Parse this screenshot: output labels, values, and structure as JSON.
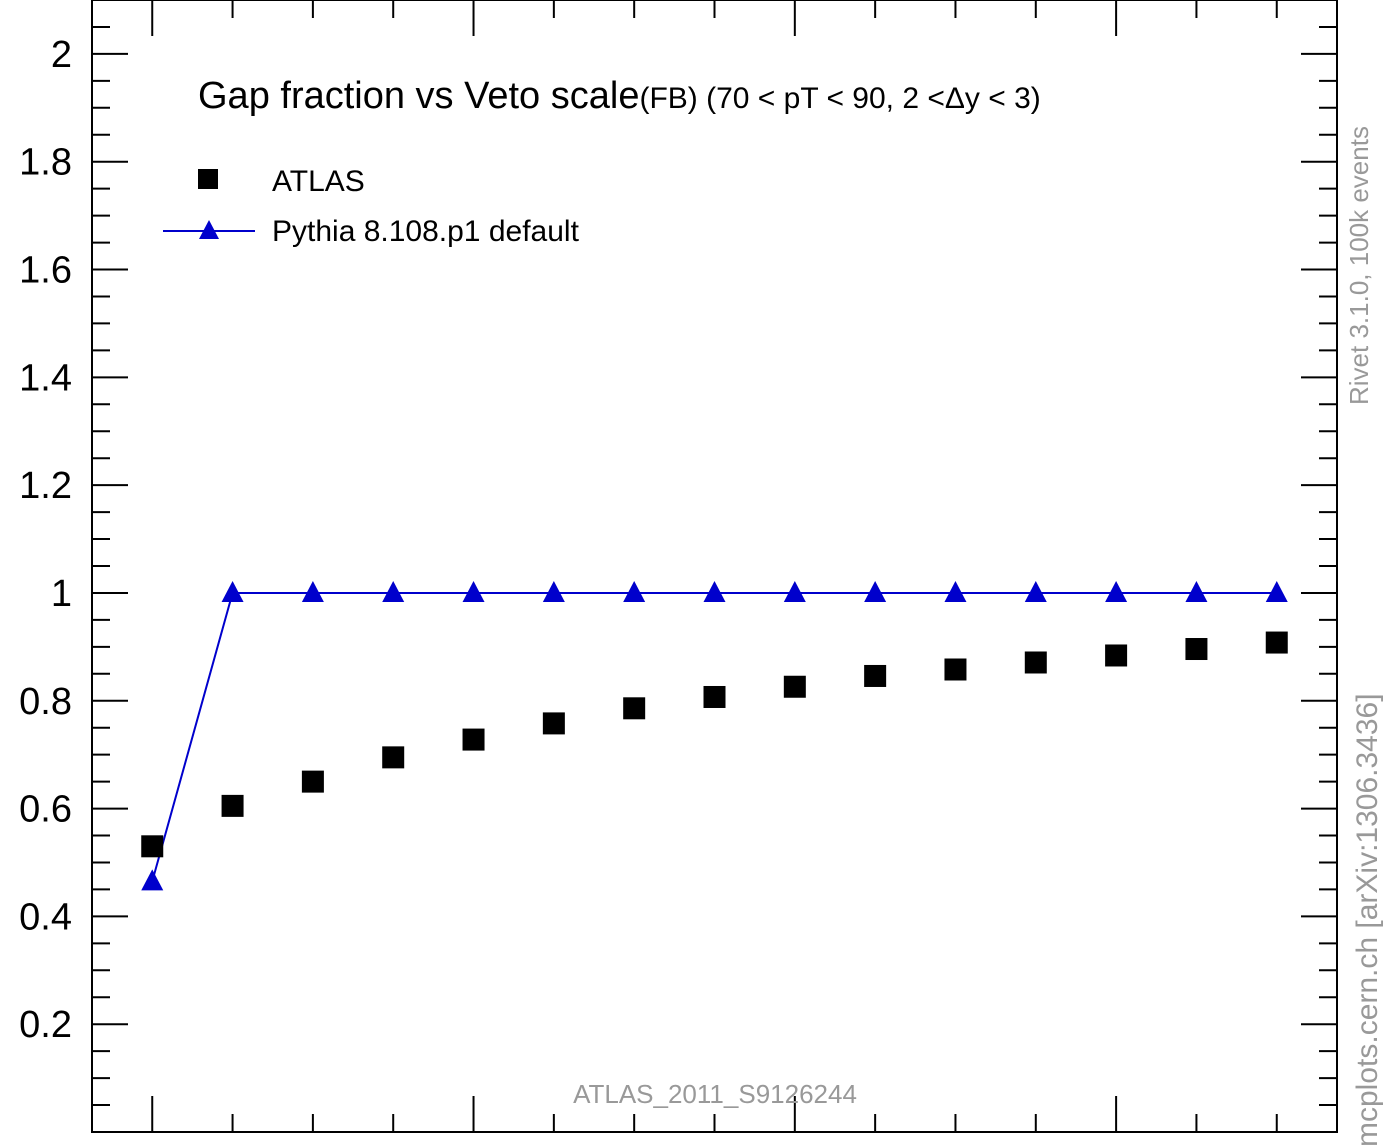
{
  "chart_data": {
    "type": "scatter",
    "title_main": "Gap fraction vs Veto scale",
    "title_suffix": "(FB) (70 < pT <  90, 2 <Δy < 3)",
    "xlabel": "",
    "ylabel": "",
    "x_ticks": [],
    "y_ticks": [
      "0.2",
      "0.4",
      "0.6",
      "0.8",
      "1",
      "1.2",
      "1.4",
      "1.6",
      "1.8",
      "2"
    ],
    "y_tick_values": [
      0.2,
      0.4,
      0.6,
      0.8,
      1.0,
      1.2,
      1.4,
      1.6,
      1.8,
      2.0
    ],
    "ylim": [
      0.0,
      2.1
    ],
    "xlim": [
      0.25,
      15.75
    ],
    "grid": false,
    "legend_position": "top-left",
    "series": [
      {
        "name": "ATLAS",
        "marker": "square",
        "color": "#000000",
        "x": [
          1,
          2,
          3,
          4,
          5,
          6,
          7,
          8,
          9,
          10,
          11,
          12,
          13,
          14,
          15
        ],
        "values": [
          0.53,
          0.605,
          0.65,
          0.695,
          0.728,
          0.758,
          0.786,
          0.807,
          0.826,
          0.846,
          0.858,
          0.871,
          0.884,
          0.896,
          0.908
        ]
      },
      {
        "name": "Pythia 8.108.p1 default",
        "marker": "triangle",
        "color": "#0000cc",
        "x": [
          1,
          2,
          3,
          4,
          5,
          6,
          7,
          8,
          9,
          10,
          11,
          12,
          13,
          14,
          15
        ],
        "values": [
          0.465,
          1.0,
          1.0,
          1.0,
          1.0,
          1.0,
          1.0,
          1.0,
          1.0,
          1.0,
          1.0,
          1.0,
          1.0,
          1.0,
          1.0
        ]
      }
    ],
    "watermark": "ATLAS_2011_S9126244",
    "side_label_top": "Rivet 3.1.0,  100k events",
    "side_label_bottom": "mcplots.cern.ch [arXiv:1306.3436]"
  }
}
